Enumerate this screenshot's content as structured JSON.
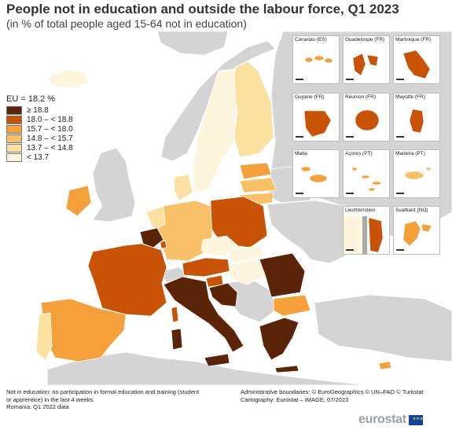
{
  "title": "People not in education and outside the labour force, Q1 2023",
  "subtitle": "(in % of total people aged 15-64 not in education)",
  "legend": {
    "title": "EU = 18.2 %",
    "items": [
      {
        "label": "≥ 18.8",
        "color": "#5b2409"
      },
      {
        "label": "18.0 – < 18.8",
        "color": "#c85306"
      },
      {
        "label": "15.7 – < 18.0",
        "color": "#f5a03a"
      },
      {
        "label": "14.8 – < 15.7",
        "color": "#f8c167"
      },
      {
        "label": "13.7 – < 14.8",
        "color": "#fbe0a0"
      },
      {
        "label": "< 13.7",
        "color": "#fdf5dd"
      }
    ]
  },
  "insets": [
    {
      "name": "Canarias (ES)",
      "color": "#f5a03a"
    },
    {
      "name": "Guadeloupe (FR)",
      "color": "#c85306"
    },
    {
      "name": "Martinique (FR)",
      "color": "#c85306"
    },
    {
      "name": "Guyane (FR)",
      "color": "#c85306"
    },
    {
      "name": "Réunion (FR)",
      "color": "#c85306"
    },
    {
      "name": "Mayotte (FR)",
      "color": "#c85306"
    },
    {
      "name": "Malta",
      "color": "#f5a03a"
    },
    {
      "name": "Açores (PT)",
      "color": "#f5a03a"
    },
    {
      "name": "Madeira (PT)",
      "color": "#f8c167"
    },
    {
      "name": "Liechtenstein",
      "color": "#c85306"
    },
    {
      "name": "Svalbard (NO)",
      "color": "#f5a03a"
    }
  ],
  "notes": [
    "Not in education: no participation in formal education and training (student",
    "or apprentice) in the last 4 weeks.",
    "Romania: Q1 2022 data"
  ],
  "credits": [
    "Administrative boundaries: © EuroGeographics © UN–FAO © Turkstat",
    "Cartography: Eurostat – IMAGE, 07/2023"
  ],
  "logo": "eurostat",
  "colors": {
    "sea": "#ffffff",
    "non_eu_land": "#d4d4d4",
    "border": "#ffffff"
  }
}
